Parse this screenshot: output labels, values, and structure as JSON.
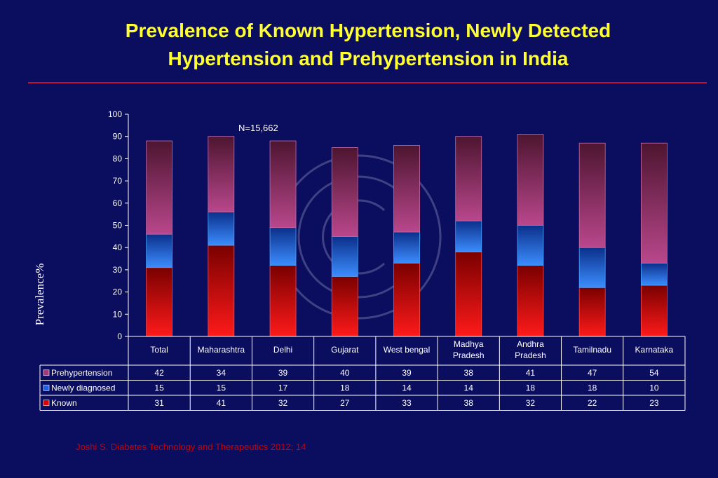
{
  "slide": {
    "title_line1": "Prevalence of Known Hypertension, Newly Detected",
    "title_line2": "Hypertension and Prehypertension in India",
    "citation": "Joshi S. Diabetes Technology and Therapeutics 2012; 14"
  },
  "chart_data": {
    "type": "bar",
    "stacked": true,
    "ylabel": "Prevalence%",
    "ylim": [
      0,
      100
    ],
    "yticks": [
      0,
      10,
      20,
      30,
      40,
      50,
      60,
      70,
      80,
      90,
      100
    ],
    "annotation": "N=15,662",
    "categories": [
      "Total",
      "Maharashtra",
      "Delhi",
      "Gujarat",
      "West bengal",
      "Madhya Pradesh",
      "Andhra Pradesh",
      "Tamilnadu",
      "Karnataka"
    ],
    "series": [
      {
        "name": "Known",
        "values": [
          31,
          41,
          32,
          27,
          33,
          38,
          32,
          22,
          23
        ],
        "color": "#e00000"
      },
      {
        "name": "Newly diagnosed",
        "values": [
          15,
          15,
          17,
          18,
          14,
          14,
          18,
          18,
          10
        ],
        "color": "#1f5fe0"
      },
      {
        "name": "Prehypertension",
        "values": [
          42,
          34,
          39,
          40,
          39,
          38,
          41,
          47,
          54
        ],
        "color": "#a03a78"
      }
    ],
    "table_rows": [
      "Prehypertension",
      "Newly diagnosed",
      "Known"
    ],
    "legend_position": "data-table",
    "grid": false
  }
}
